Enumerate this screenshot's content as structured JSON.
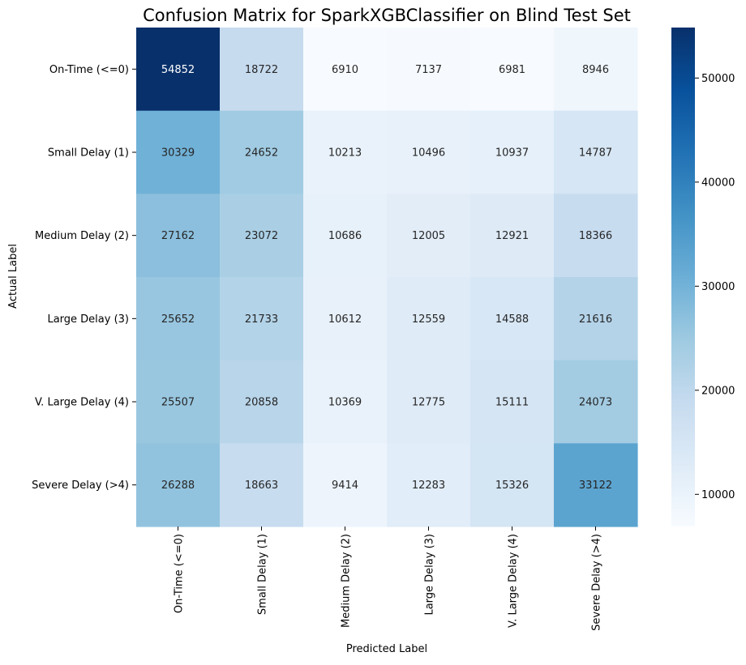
{
  "chart_data": {
    "type": "heatmap",
    "title": "Confusion Matrix for SparkXGBClassifier on Blind Test Set",
    "xlabel": "Predicted Label",
    "ylabel": "Actual Label",
    "row_labels": [
      "On-Time (<=0)",
      "Small Delay (1)",
      "Medium Delay (2)",
      "Large Delay (3)",
      "V. Large Delay (4)",
      "Severe Delay (>4)"
    ],
    "col_labels": [
      "On-Time (<=0)",
      "Small Delay (1)",
      "Medium Delay (2)",
      "Large Delay (3)",
      "V. Large Delay (4)",
      "Severe Delay (>4)"
    ],
    "values": [
      [
        54852,
        18722,
        6910,
        7137,
        6981,
        8946
      ],
      [
        30329,
        24652,
        10213,
        10496,
        10937,
        14787
      ],
      [
        27162,
        23072,
        10686,
        12005,
        12921,
        18366
      ],
      [
        25652,
        21733,
        10612,
        12559,
        14588,
        21616
      ],
      [
        25507,
        20858,
        10369,
        12775,
        15111,
        24073
      ],
      [
        26288,
        18663,
        9414,
        12283,
        15326,
        33122
      ]
    ],
    "colormap": "Blues",
    "color_range": [
      6910,
      54852
    ],
    "colorbar_ticks": [
      10000,
      20000,
      30000,
      40000,
      50000
    ],
    "annotated": true,
    "grid": false
  }
}
